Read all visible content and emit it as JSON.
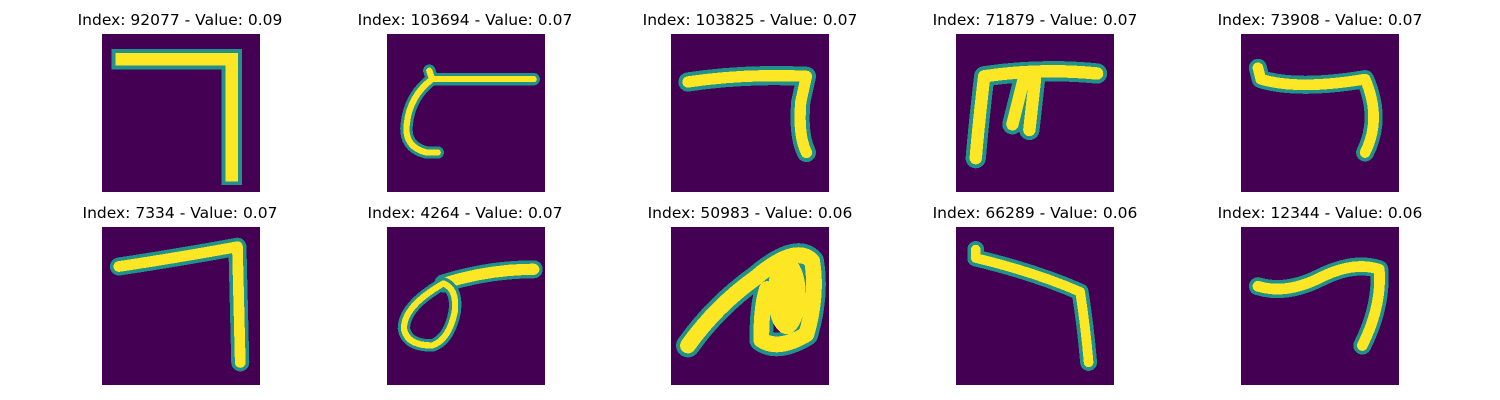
{
  "figure": {
    "colors": {
      "background": "#440154",
      "mid": "#21918c",
      "high": "#fde725"
    },
    "panels": [
      {
        "title": "Index: 92077 - Value: 0.09",
        "stroke_shape": "seven-sharp-corner"
      },
      {
        "title": "Index: 103694 - Value: 0.07",
        "stroke_shape": "seven-curved-tail"
      },
      {
        "title": "Index: 103825 - Value: 0.07",
        "stroke_shape": "seven-short"
      },
      {
        "title": "Index: 71879 - Value: 0.07",
        "stroke_shape": "double-leg-seven"
      },
      {
        "title": "Index: 73908 - Value: 0.07",
        "stroke_shape": "seven-hooked-top"
      },
      {
        "title": "Index: 7334 - Value: 0.07",
        "stroke_shape": "seven-long-leg"
      },
      {
        "title": "Index: 4264 - Value: 0.07",
        "stroke_shape": "loop-with-bar"
      },
      {
        "title": "Index: 50983 - Value: 0.06",
        "stroke_shape": "thick-loop"
      },
      {
        "title": "Index: 66289 - Value: 0.06",
        "stroke_shape": "slanted-seven"
      },
      {
        "title": "Index: 12344 - Value: 0.06",
        "stroke_shape": "wavy-seven"
      }
    ]
  }
}
